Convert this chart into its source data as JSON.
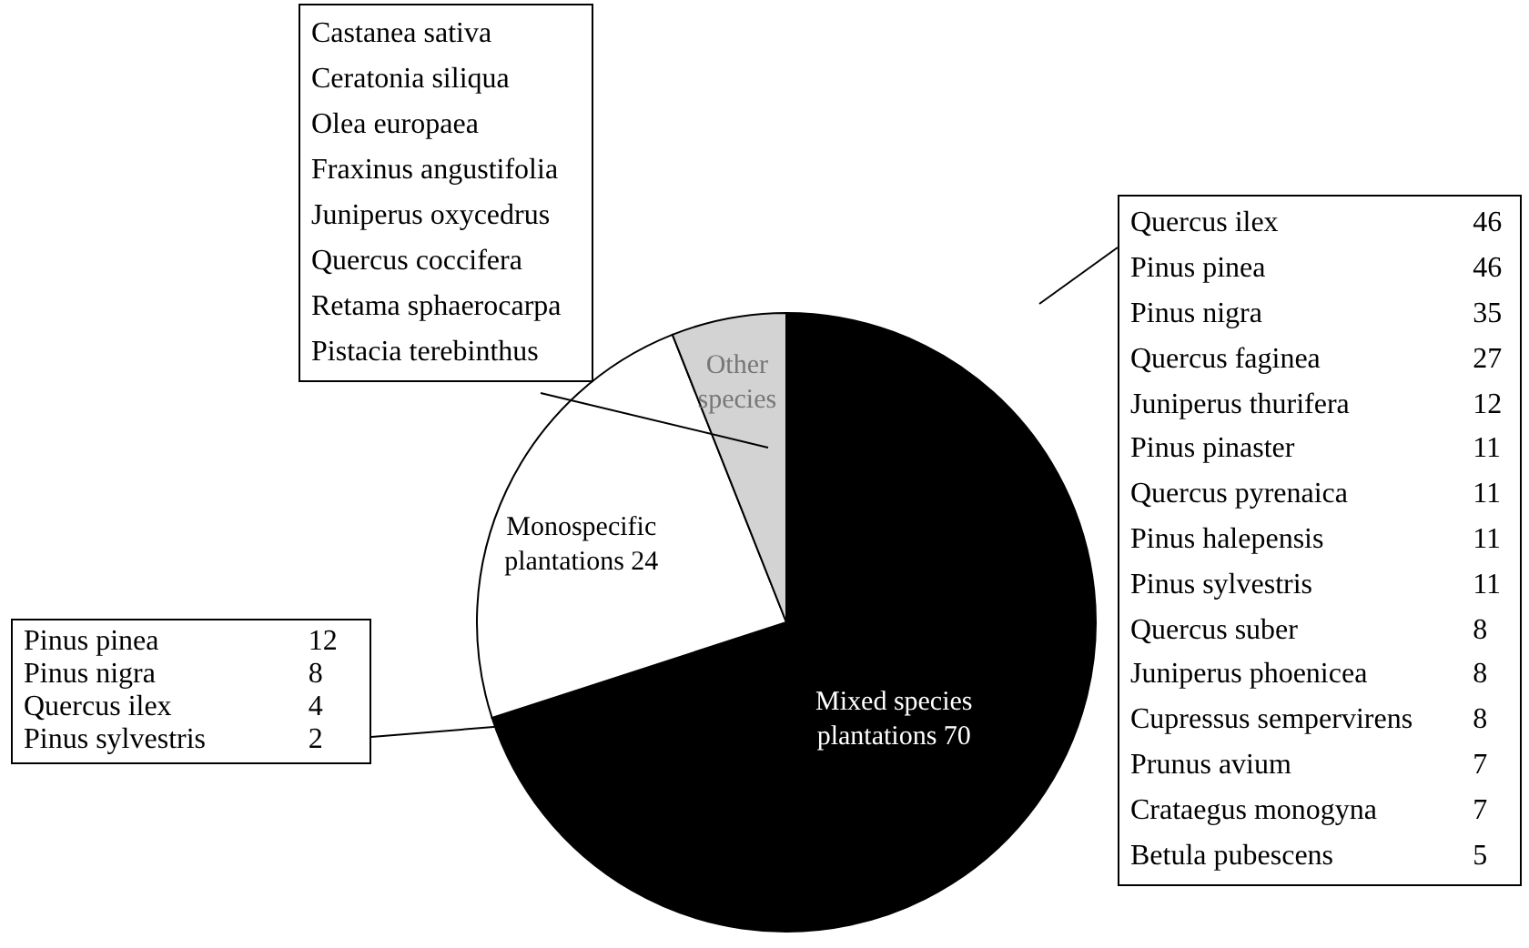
{
  "chart_data": {
    "type": "pie",
    "categories": [
      "Mixed species plantations",
      "Monospecific plantations",
      "Other species"
    ],
    "values": [
      70,
      24,
      6
    ],
    "value_labels": [
      "70",
      "24",
      null
    ],
    "colors": [
      "#000000",
      "#ffffff",
      "#d3d3d3"
    ],
    "annotations": [
      "Castanea sativa\nCeratonia siliqua\nOlea europaea\nFraxinus angustifolia\nJuniperus oxycedrus\nQuercus coccifera\nRetama sphaerocarpa\nPistacia terebinthus",
      "Pinus pinea\t12\nPinus nigra\t8\nQuercus ilex\t4\nPinus sylvestris\t2",
      "Quercus ilex\t46\nPinus pinea\t46\nPinus nigra\t35\nQuercus faginea\t27\nJuniperus thurifera\t12\nPinus pinaster\t11\nQuercus pyrenaica\t11\nPinus halepensis\t11\nPinus sylvestris\t11\nQuercus suber\t8\nJuniperus phoenicea\t8\nCupressus sempervirens\t8\nPrunus avium\t7\nCrataegus monogyna\t7\nBetula pubescens\t5"
    ]
  }
}
